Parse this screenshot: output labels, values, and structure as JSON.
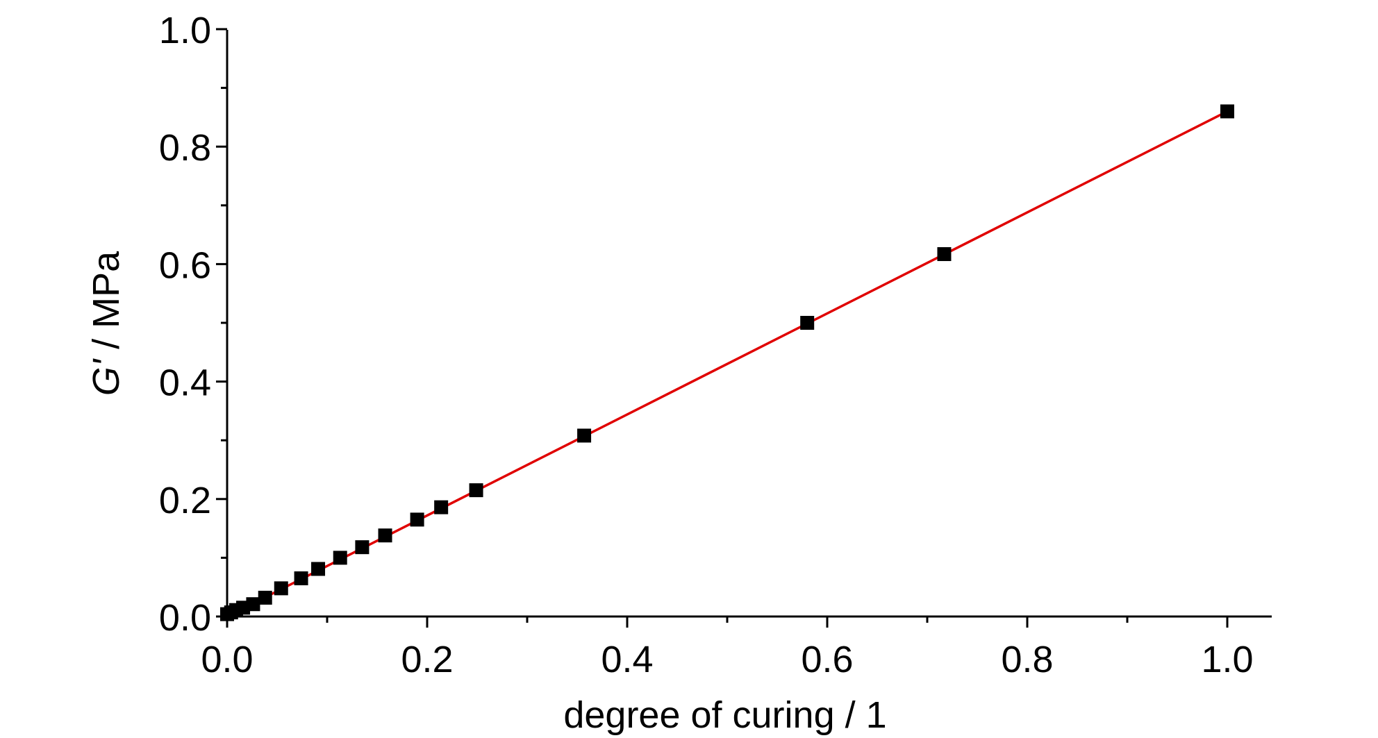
{
  "chart_data": {
    "type": "scatter",
    "title": "",
    "xlabel": "degree of curing / 1",
    "ylabel_symbol": "G'",
    "ylabel_rest": " / MPa",
    "xlim": [
      0.0,
      1.05
    ],
    "ylim": [
      0.0,
      1.0
    ],
    "x_ticks": [
      "0.0",
      "0.2",
      "0.4",
      "0.6",
      "0.8",
      "1.0"
    ],
    "y_ticks": [
      "0.0",
      "0.2",
      "0.4",
      "0.6",
      "0.8",
      "1.0"
    ],
    "grid": false,
    "legend": "none",
    "marker_color": "#000000",
    "fit_color": "#e00000",
    "series": [
      {
        "x": [
          0.0,
          0.004,
          0.009,
          0.016,
          0.026,
          0.038,
          0.054,
          0.074,
          0.091,
          0.113,
          0.135,
          0.158,
          0.19,
          0.214,
          0.249,
          0.357,
          0.58,
          0.717,
          1.0
        ],
        "y": [
          0.004,
          0.007,
          0.011,
          0.015,
          0.021,
          0.032,
          0.048,
          0.065,
          0.081,
          0.1,
          0.118,
          0.138,
          0.165,
          0.186,
          0.215,
          0.308,
          0.5,
          0.617,
          0.86
        ]
      }
    ],
    "fit_line": {
      "x": [
        0.0,
        1.0
      ],
      "y": [
        0.0,
        0.86
      ]
    }
  }
}
